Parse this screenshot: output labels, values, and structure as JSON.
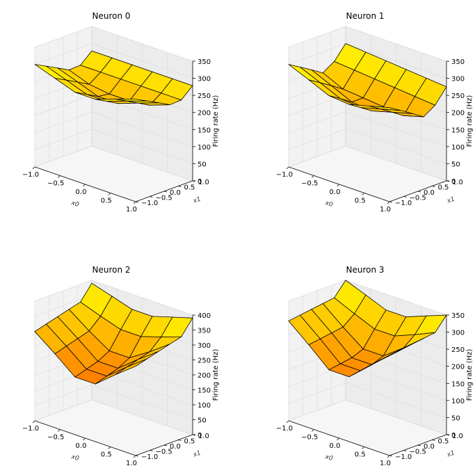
{
  "chart_data": [
    {
      "type": "surface",
      "title": "Neuron 0",
      "xlabel": "x0",
      "ylabel": "x1",
      "zlabel": "Firing rate (Hz)",
      "x": [
        -1.0,
        -0.6,
        -0.2,
        0.2,
        0.6,
        1.0
      ],
      "y": [
        -1.0,
        -0.6,
        -0.2,
        0.2,
        0.6,
        1.0
      ],
      "z_max": 300,
      "xlim": [
        -1.0,
        1.0
      ],
      "ylim": [
        -1.0,
        1.0
      ],
      "zlim": [
        0,
        350
      ],
      "x_ticks": [
        "−1.0",
        "−0.5",
        "0.0",
        "0.5",
        "1.0"
      ],
      "y_ticks": [
        "−0.5",
        "0.0",
        "0.5",
        "1.0",
        "−1.0"
      ],
      "z_ticks": [
        "0",
        "50",
        "100",
        "150",
        "200",
        "250",
        "300",
        "350"
      ],
      "colormap": [
        "#ff0000",
        "#ffff00"
      ]
    },
    {
      "type": "surface",
      "title": "Neuron 1",
      "xlabel": "x0",
      "ylabel": "x1",
      "zlabel": "Firing rate (Hz)",
      "x": [
        -1.0,
        -0.6,
        -0.2,
        0.2,
        0.6,
        1.0
      ],
      "y": [
        -1.0,
        -0.6,
        -0.2,
        0.2,
        0.6,
        1.0
      ],
      "z_max": 300,
      "xlim": [
        -1.0,
        1.0
      ],
      "ylim": [
        -1.0,
        1.0
      ],
      "zlim": [
        0,
        350
      ],
      "x_ticks": [
        "−1.0",
        "−0.5",
        "0.0",
        "0.5",
        "1.0"
      ],
      "y_ticks": [
        "−0.5",
        "0.0",
        "0.5",
        "1.0",
        "−1.0"
      ],
      "z_ticks": [
        "0",
        "50",
        "100",
        "150",
        "200",
        "250",
        "300",
        "350"
      ],
      "colormap": [
        "#ff0000",
        "#ffff00"
      ]
    },
    {
      "type": "surface",
      "title": "Neuron 2",
      "xlabel": "x0",
      "ylabel": "x1",
      "zlabel": "Firing rate (Hz)",
      "x": [
        -1.0,
        -0.6,
        -0.2,
        0.2,
        0.6,
        1.0
      ],
      "y": [
        -1.0,
        -0.6,
        -0.2,
        0.2,
        0.6,
        1.0
      ],
      "z_max": 390,
      "xlim": [
        -1.0,
        1.0
      ],
      "ylim": [
        -1.0,
        1.0
      ],
      "zlim": [
        0,
        400
      ],
      "x_ticks": [
        "−1.0",
        "−0.5",
        "0.0",
        "0.5",
        "1.0"
      ],
      "y_ticks": [
        "−0.5",
        "0.0",
        "0.5",
        "1.0",
        "−1.0"
      ],
      "z_ticks": [
        "0",
        "50",
        "100",
        "150",
        "200",
        "250",
        "300",
        "350",
        "400"
      ],
      "colormap": [
        "#ff0000",
        "#ffff00"
      ]
    },
    {
      "type": "surface",
      "title": "Neuron 3",
      "xlabel": "x0",
      "ylabel": "x1",
      "zlabel": "Firing rate (Hz)",
      "x": [
        -1.0,
        -0.6,
        -0.2,
        0.2,
        0.6,
        1.0
      ],
      "y": [
        -1.0,
        -0.6,
        -0.2,
        0.2,
        0.6,
        1.0
      ],
      "z_max": 350,
      "xlim": [
        -1.0,
        1.0
      ],
      "ylim": [
        -1.0,
        1.0
      ],
      "zlim": [
        0,
        350
      ],
      "x_ticks": [
        "−1.0",
        "−0.5",
        "0.0",
        "0.5",
        "1.0"
      ],
      "y_ticks": [
        "−0.5",
        "0.0",
        "0.5",
        "1.0",
        "−1.0"
      ],
      "z_ticks": [
        "0",
        "50",
        "100",
        "150",
        "200",
        "250",
        "300",
        "350"
      ],
      "colormap": [
        "#ff0000",
        "#ffff00"
      ]
    }
  ]
}
